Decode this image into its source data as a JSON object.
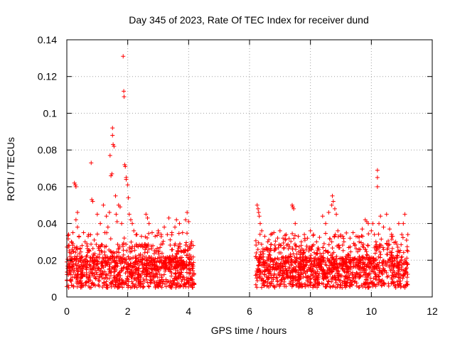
{
  "chart_data": {
    "type": "scatter",
    "title": "Day 345 of 2023, Rate Of TEC Index for receiver dund",
    "xlabel": "GPS time / hours",
    "ylabel": "ROTI / TECUs",
    "xlim": [
      0,
      12
    ],
    "ylim": [
      0,
      0.14
    ],
    "xticks": [
      0,
      2,
      4,
      6,
      8,
      10,
      12
    ],
    "xtick_labels": [
      "0",
      "2",
      "4",
      "6",
      "8",
      "10",
      "12"
    ],
    "yticks": [
      0,
      0.02,
      0.04,
      0.06,
      0.08,
      0.1,
      0.12,
      0.14
    ],
    "ytick_labels": [
      "0",
      "0.02",
      "0.04",
      "0.06",
      "0.08",
      "0.1",
      "0.12",
      "0.14"
    ],
    "grid": true,
    "marker": "+",
    "series": [
      {
        "name": "ROTI",
        "color": "#ff0000",
        "points": [
          [
            0.05,
            0.028
          ],
          [
            0.1,
            0.022
          ],
          [
            0.15,
            0.03
          ],
          [
            0.2,
            0.035
          ],
          [
            0.25,
            0.062
          ],
          [
            0.28,
            0.061
          ],
          [
            0.3,
            0.06
          ],
          [
            0.3,
            0.042
          ],
          [
            0.35,
            0.038
          ],
          [
            0.35,
            0.046
          ],
          [
            0.4,
            0.033
          ],
          [
            0.5,
            0.028
          ],
          [
            0.55,
            0.035
          ],
          [
            0.6,
            0.03
          ],
          [
            0.7,
            0.033
          ],
          [
            0.8,
            0.073
          ],
          [
            0.82,
            0.053
          ],
          [
            0.85,
            0.052
          ],
          [
            0.9,
            0.031
          ],
          [
            1.0,
            0.045
          ],
          [
            1.1,
            0.04
          ],
          [
            1.2,
            0.05
          ],
          [
            1.25,
            0.035
          ],
          [
            1.3,
            0.044
          ],
          [
            1.35,
            0.038
          ],
          [
            1.4,
            0.046
          ],
          [
            1.42,
            0.077
          ],
          [
            1.45,
            0.066
          ],
          [
            1.48,
            0.067
          ],
          [
            1.5,
            0.088
          ],
          [
            1.5,
            0.092
          ],
          [
            1.52,
            0.083
          ],
          [
            1.55,
            0.082
          ],
          [
            1.6,
            0.055
          ],
          [
            1.62,
            0.045
          ],
          [
            1.65,
            0.041
          ],
          [
            1.7,
            0.05
          ],
          [
            1.75,
            0.049
          ],
          [
            1.8,
            0.04
          ],
          [
            1.85,
            0.131
          ],
          [
            1.87,
            0.112
          ],
          [
            1.88,
            0.109
          ],
          [
            1.9,
            0.072
          ],
          [
            1.92,
            0.071
          ],
          [
            1.95,
            0.065
          ],
          [
            1.95,
            0.064
          ],
          [
            2.0,
            0.061
          ],
          [
            2.02,
            0.054
          ],
          [
            2.05,
            0.045
          ],
          [
            2.1,
            0.042
          ],
          [
            2.15,
            0.04
          ],
          [
            2.2,
            0.036
          ],
          [
            2.3,
            0.034
          ],
          [
            2.45,
            0.033
          ],
          [
            2.6,
            0.045
          ],
          [
            2.65,
            0.043
          ],
          [
            2.7,
            0.04
          ],
          [
            2.8,
            0.035
          ],
          [
            2.9,
            0.033
          ],
          [
            3.0,
            0.036
          ],
          [
            3.1,
            0.034
          ],
          [
            3.2,
            0.038
          ],
          [
            3.3,
            0.034
          ],
          [
            3.35,
            0.043
          ],
          [
            3.45,
            0.035
          ],
          [
            3.55,
            0.038
          ],
          [
            3.6,
            0.042
          ],
          [
            3.7,
            0.04
          ],
          [
            3.8,
            0.035
          ],
          [
            3.9,
            0.042
          ],
          [
            3.95,
            0.046
          ],
          [
            4.0,
            0.041
          ],
          [
            4.1,
            0.03
          ],
          [
            4.15,
            0.028
          ],
          [
            6.25,
            0.05
          ],
          [
            6.28,
            0.048
          ],
          [
            6.3,
            0.046
          ],
          [
            6.32,
            0.044
          ],
          [
            6.35,
            0.04
          ],
          [
            6.4,
            0.036
          ],
          [
            6.5,
            0.033
          ],
          [
            6.6,
            0.03
          ],
          [
            6.7,
            0.034
          ],
          [
            6.8,
            0.035
          ],
          [
            7.0,
            0.036
          ],
          [
            7.1,
            0.032
          ],
          [
            7.2,
            0.034
          ],
          [
            7.4,
            0.05
          ],
          [
            7.42,
            0.049
          ],
          [
            7.45,
            0.048
          ],
          [
            7.5,
            0.04
          ],
          [
            7.6,
            0.033
          ],
          [
            7.7,
            0.03
          ],
          [
            7.8,
            0.034
          ],
          [
            7.9,
            0.032
          ],
          [
            8.0,
            0.036
          ],
          [
            8.1,
            0.034
          ],
          [
            8.2,
            0.03
          ],
          [
            8.4,
            0.044
          ],
          [
            8.5,
            0.04
          ],
          [
            8.6,
            0.046
          ],
          [
            8.7,
            0.05
          ],
          [
            8.72,
            0.055
          ],
          [
            8.75,
            0.052
          ],
          [
            8.8,
            0.048
          ],
          [
            8.85,
            0.045
          ],
          [
            8.9,
            0.036
          ],
          [
            9.0,
            0.033
          ],
          [
            9.1,
            0.03
          ],
          [
            9.3,
            0.032
          ],
          [
            9.4,
            0.035
          ],
          [
            9.5,
            0.033
          ],
          [
            9.6,
            0.03
          ],
          [
            9.7,
            0.037
          ],
          [
            9.8,
            0.042
          ],
          [
            9.85,
            0.041
          ],
          [
            9.9,
            0.04
          ],
          [
            10.0,
            0.036
          ],
          [
            10.05,
            0.04
          ],
          [
            10.1,
            0.034
          ],
          [
            10.15,
            0.03
          ],
          [
            10.2,
            0.069
          ],
          [
            10.2,
            0.065
          ],
          [
            10.2,
            0.06
          ],
          [
            10.25,
            0.04
          ],
          [
            10.3,
            0.044
          ],
          [
            10.4,
            0.038
          ],
          [
            10.5,
            0.045
          ],
          [
            10.6,
            0.037
          ],
          [
            10.7,
            0.033
          ],
          [
            10.8,
            0.03
          ],
          [
            10.9,
            0.04
          ],
          [
            11.0,
            0.034
          ],
          [
            11.05,
            0.04
          ],
          [
            11.1,
            0.045
          ]
        ]
      }
    ]
  }
}
